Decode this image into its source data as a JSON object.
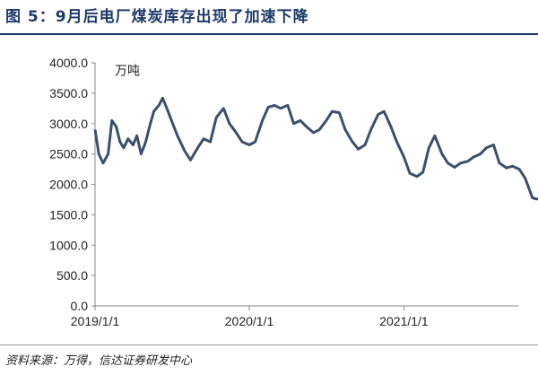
{
  "title": "图 5：9月后电厂煤炭库存出现了加速下降",
  "source": "资料来源：万得，信达证券研发中心",
  "chart_data": {
    "type": "line",
    "unit_label": "万吨",
    "ylim": [
      0,
      4000
    ],
    "y_ticks": [
      "0.0",
      "500.0",
      "1000.0",
      "1500.0",
      "2000.0",
      "2500.0",
      "3000.0",
      "3500.0",
      "4000.0"
    ],
    "x_ticks": [
      "2019/1/1",
      "2020/1/1",
      "2021/1/1"
    ],
    "grid": false,
    "legend": "none",
    "line_color": "#3b4f6e",
    "series": [
      {
        "x": [
          "2019-01-01",
          "2019-01-10",
          "2019-01-20",
          "2019-02-01",
          "2019-02-10",
          "2019-02-20",
          "2019-03-01",
          "2019-03-10",
          "2019-03-20",
          "2019-04-01",
          "2019-04-10",
          "2019-04-20",
          "2019-05-01",
          "2019-05-10",
          "2019-05-20",
          "2019-06-01",
          "2019-06-10",
          "2019-06-20",
          "2019-07-01",
          "2019-07-15",
          "2019-08-01",
          "2019-08-15",
          "2019-09-01",
          "2019-09-15",
          "2019-10-01",
          "2019-10-15",
          "2019-11-01",
          "2019-11-15",
          "2019-12-01",
          "2019-12-15",
          "2020-01-01",
          "2020-01-15",
          "2020-02-01",
          "2020-02-15",
          "2020-03-01",
          "2020-03-15",
          "2020-04-01",
          "2020-04-15",
          "2020-05-01",
          "2020-05-15",
          "2020-06-01",
          "2020-06-15",
          "2020-07-01",
          "2020-07-15",
          "2020-08-01",
          "2020-08-15",
          "2020-09-01",
          "2020-09-15",
          "2020-10-01",
          "2020-10-15",
          "2020-11-01",
          "2020-11-15",
          "2020-12-01",
          "2020-12-15",
          "2021-01-01",
          "2021-01-15",
          "2021-02-01",
          "2021-02-15",
          "2021-03-01",
          "2021-03-15",
          "2021-04-01",
          "2021-04-15",
          "2021-05-01",
          "2021-05-15",
          "2021-06-01",
          "2021-06-15",
          "2021-07-01",
          "2021-07-15",
          "2021-08-01",
          "2021-08-15",
          "2021-09-01",
          "2021-09-15",
          "2021-10-01",
          "2021-10-15",
          "2021-11-01",
          "2021-11-10",
          "2021-11-20"
        ],
        "y": [
          2900,
          2500,
          2350,
          2500,
          3050,
          2950,
          2700,
          2600,
          2750,
          2650,
          2800,
          2500,
          2700,
          2950,
          3200,
          3300,
          3420,
          3250,
          3050,
          2800,
          2550,
          2400,
          2600,
          2750,
          2700,
          3100,
          3250,
          3000,
          2850,
          2700,
          2650,
          2700,
          3050,
          3270,
          3300,
          3250,
          3300,
          3000,
          3050,
          2950,
          2850,
          2900,
          3050,
          3200,
          3180,
          2900,
          2700,
          2580,
          2650,
          2900,
          3150,
          3200,
          2950,
          2700,
          2450,
          2180,
          2130,
          2200,
          2600,
          2800,
          2500,
          2350,
          2280,
          2350,
          2380,
          2450,
          2500,
          2600,
          2650,
          2350,
          2270,
          2300,
          2250,
          2100,
          1780,
          1760,
          1760
        ]
      }
    ]
  }
}
